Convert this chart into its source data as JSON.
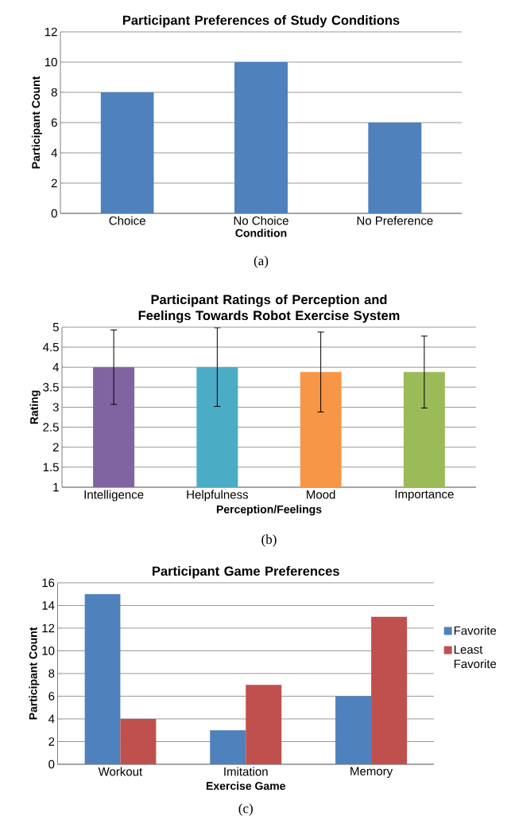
{
  "chart_data": [
    {
      "type": "bar",
      "title": "Participant Preferences of Study Conditions",
      "xlabel": "Condition",
      "ylabel": "Participant Count",
      "categories": [
        "Choice",
        "No Choice",
        "No Preference"
      ],
      "values": [
        8,
        10,
        6
      ],
      "color": "#4f81bd",
      "ylim": [
        0,
        12
      ],
      "yticks": [
        0,
        2,
        4,
        6,
        8,
        10,
        12
      ],
      "grid": "y",
      "annotations": [
        "(a)"
      ]
    },
    {
      "type": "bar",
      "title": "Participant Ratings of Perception and Feelings Towards Robot Exercise System",
      "xlabel": "Perception/Feelings",
      "ylabel": "Rating",
      "categories": [
        "Intelligence",
        "Helpfulness",
        "Mood",
        "Importance"
      ],
      "values": [
        4,
        4,
        3.88,
        3.88
      ],
      "colors": [
        "#8064a2",
        "#4bacc6",
        "#f79646",
        "#9bbb59"
      ],
      "errors": [
        0.93,
        0.98,
        1.0,
        0.9
      ],
      "ylim": [
        1,
        5
      ],
      "yticks": [
        1,
        1.5,
        2,
        2.5,
        3,
        3.5,
        4,
        4.5,
        5
      ],
      "grid": "y",
      "annotations": [
        "(b)"
      ]
    },
    {
      "type": "bar",
      "title": "Participant Game Preferences",
      "xlabel": "Exercise Game",
      "ylabel": "Participant Count",
      "categories": [
        "Workout",
        "Imitation",
        "Memory"
      ],
      "series": [
        {
          "name": "Favorite",
          "color": "#4f81bd",
          "values": [
            15,
            3,
            6
          ]
        },
        {
          "name": "Least Favorite",
          "color": "#c0504d",
          "values": [
            4,
            7,
            13
          ]
        }
      ],
      "ylim": [
        0,
        16
      ],
      "yticks": [
        0,
        2,
        4,
        6,
        8,
        10,
        12,
        14,
        16
      ],
      "grid": "y",
      "legend": "right",
      "annotations": [
        "(c)"
      ]
    }
  ]
}
